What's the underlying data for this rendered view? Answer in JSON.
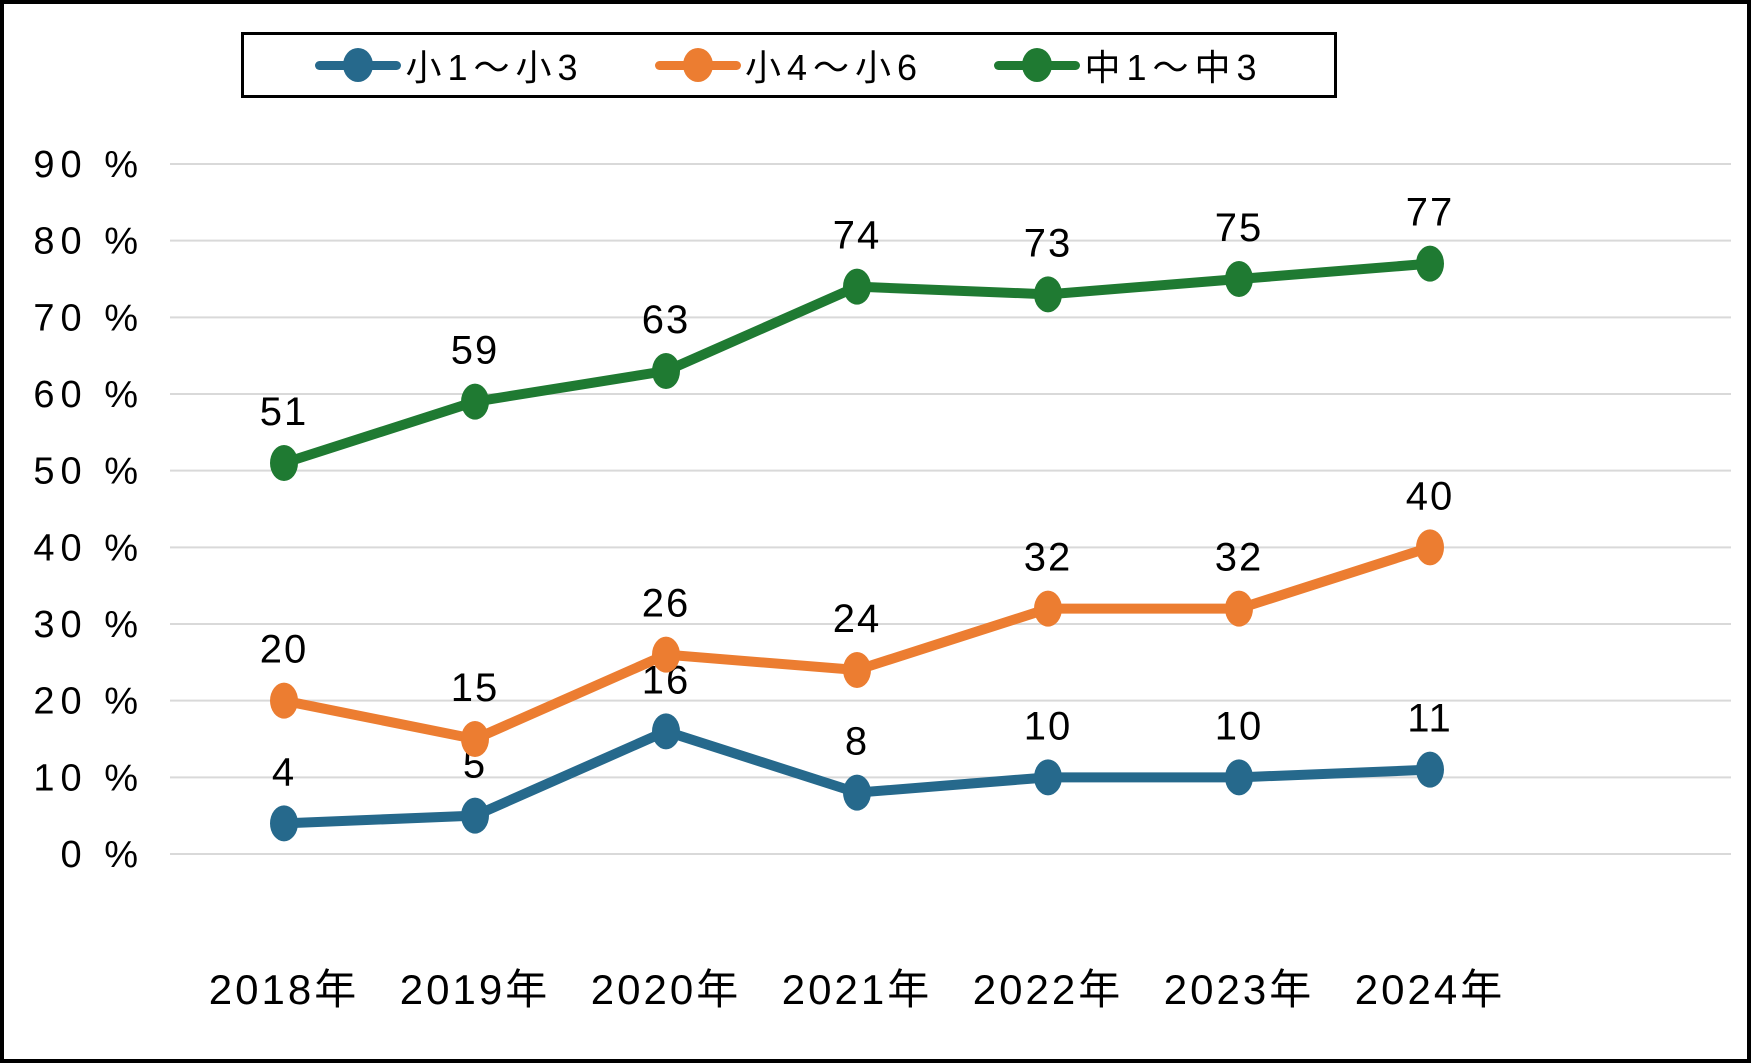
{
  "chart_data": {
    "type": "line",
    "title": "",
    "categories": [
      "2018年",
      "2019年",
      "2020年",
      "2021年",
      "2022年",
      "2023年",
      "2024年"
    ],
    "series": [
      {
        "name": "小1～小3",
        "color": "#26698C",
        "values": [
          4,
          5,
          16,
          8,
          10,
          10,
          11
        ]
      },
      {
        "name": "小4～小6",
        "color": "#EC7D31",
        "values": [
          20,
          15,
          26,
          24,
          32,
          32,
          40
        ]
      },
      {
        "name": "中1～中3",
        "color": "#1F7A32",
        "values": [
          51,
          59,
          63,
          74,
          73,
          75,
          77
        ]
      }
    ],
    "yticks": [
      0,
      10,
      20,
      30,
      40,
      50,
      60,
      70,
      80,
      90
    ],
    "ylim": [
      0,
      90
    ],
    "ytick_format": "{v} %",
    "grid": true,
    "gridline_color": "#D9D9D9",
    "data_labels": true,
    "legend_position": "top"
  }
}
